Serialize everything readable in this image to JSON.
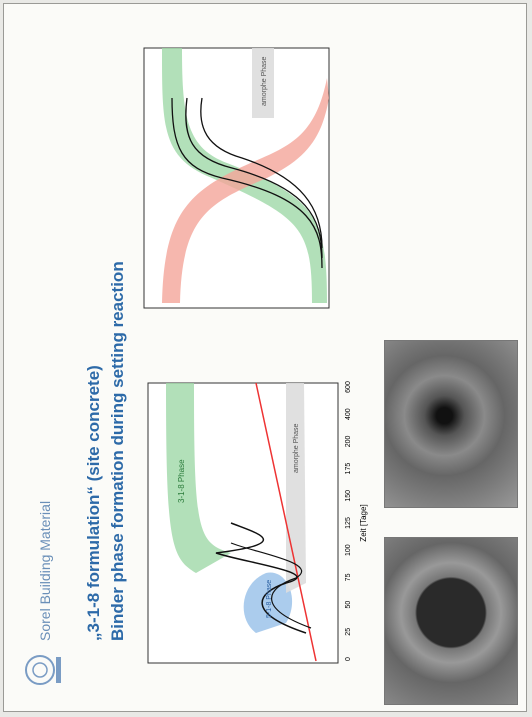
{
  "header": {
    "title": "Sorel Building Material"
  },
  "slide": {
    "title_line1": "„3-1-8 formulation“ (site concrete)",
    "title_line2": "Binder phase formation during setting reaction"
  },
  "left_chart": {
    "x_label": "Zeit [Tage]",
    "x_ticks": [
      "0",
      "25",
      "50",
      "75",
      "100",
      "125",
      "150",
      "175",
      "200",
      "400",
      "600"
    ],
    "labels": [
      "3-1-8 Phase",
      "5-1-8 Phase",
      "amorphe Phase"
    ]
  },
  "right_chart": {
    "labels": [
      "amorphe Phase"
    ]
  }
}
